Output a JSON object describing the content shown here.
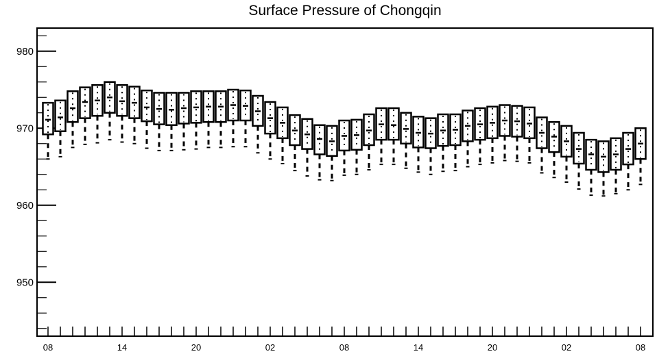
{
  "chart_data": {
    "type": "boxplot",
    "title": "Surface Pressure of Chongqin",
    "xlabel": "",
    "ylabel": "",
    "ylim": [
      943,
      983
    ],
    "y_ticks": [
      950,
      960,
      970,
      980
    ],
    "x_tick_labels": [
      "08",
      "14",
      "20",
      "02",
      "08",
      "14",
      "20",
      "02",
      "08"
    ],
    "x_tick_positions": [
      0,
      6,
      12,
      18,
      24,
      30,
      36,
      42,
      48
    ],
    "grid": false,
    "series": [
      {
        "x": [
          0,
          1,
          2,
          3,
          4,
          5,
          6,
          7,
          8,
          9,
          10,
          11,
          12,
          13,
          14,
          15,
          16,
          17,
          18,
          19,
          20,
          21,
          22,
          23,
          24,
          25,
          26,
          27,
          28,
          29,
          30,
          31,
          32,
          33,
          34,
          35,
          36,
          37,
          38,
          39,
          40,
          41,
          42,
          43,
          44,
          45,
          46,
          47,
          48
        ],
        "q1": [
          969.2,
          969.6,
          970.8,
          971.3,
          971.6,
          972.0,
          971.6,
          971.3,
          970.9,
          970.5,
          970.4,
          970.6,
          970.7,
          970.8,
          970.8,
          971.0,
          971.0,
          970.3,
          969.3,
          968.7,
          967.8,
          967.3,
          966.6,
          966.4,
          967.1,
          967.2,
          967.8,
          968.5,
          968.5,
          968.0,
          967.5,
          967.4,
          967.7,
          967.8,
          968.3,
          968.5,
          968.7,
          969.0,
          968.9,
          968.7,
          967.4,
          966.9,
          966.3,
          965.4,
          964.6,
          964.3,
          964.6,
          965.3,
          966.0
        ],
        "median": [
          971.1,
          971.4,
          972.6,
          973.4,
          973.6,
          974.0,
          973.5,
          973.3,
          972.7,
          972.5,
          972.4,
          972.6,
          972.7,
          972.8,
          972.8,
          973.0,
          972.9,
          972.2,
          971.3,
          970.7,
          969.7,
          969.2,
          968.6,
          968.3,
          969.0,
          969.1,
          969.7,
          970.5,
          970.4,
          969.9,
          969.4,
          969.3,
          969.7,
          969.8,
          970.3,
          970.5,
          970.7,
          971.0,
          970.9,
          970.6,
          969.4,
          968.9,
          968.3,
          967.3,
          966.6,
          966.3,
          966.6,
          967.3,
          968.0
        ],
        "q3": [
          973.3,
          973.6,
          974.8,
          975.3,
          975.6,
          976.0,
          975.6,
          975.4,
          974.9,
          974.6,
          974.6,
          974.6,
          974.8,
          974.8,
          974.8,
          975.0,
          974.9,
          974.2,
          973.4,
          972.7,
          971.7,
          971.2,
          970.4,
          970.3,
          971.0,
          971.1,
          971.8,
          972.6,
          972.6,
          972.0,
          971.5,
          971.3,
          971.8,
          971.8,
          972.3,
          972.6,
          972.8,
          973.0,
          972.9,
          972.7,
          971.4,
          970.8,
          970.3,
          969.4,
          968.5,
          968.3,
          968.7,
          969.4,
          970.0
        ],
        "whisker_low": [
          966.0,
          966.3,
          967.5,
          967.9,
          968.1,
          968.5,
          968.2,
          968.0,
          967.4,
          967.1,
          967.1,
          967.2,
          967.3,
          967.5,
          967.5,
          967.6,
          967.6,
          966.8,
          966.0,
          965.4,
          964.5,
          963.8,
          963.3,
          963.2,
          963.9,
          964.0,
          964.6,
          965.3,
          965.3,
          964.8,
          964.3,
          964.0,
          964.4,
          964.5,
          965.0,
          965.3,
          965.5,
          965.8,
          965.7,
          965.5,
          964.2,
          963.6,
          963.0,
          962.1,
          961.3,
          961.2,
          961.5,
          962.0,
          962.7
        ],
        "whisker_high": [
          969.2,
          969.6,
          970.8,
          971.3,
          971.6,
          972.0,
          971.6,
          971.3,
          970.9,
          970.5,
          970.4,
          970.6,
          970.7,
          970.8,
          970.8,
          971.0,
          971.0,
          970.3,
          969.3,
          968.7,
          967.8,
          967.3,
          966.6,
          966.4,
          967.1,
          967.2,
          967.8,
          968.5,
          968.5,
          968.0,
          967.5,
          967.4,
          967.7,
          967.8,
          968.3,
          968.5,
          968.7,
          969.0,
          968.9,
          968.7,
          967.4,
          966.9,
          966.3,
          965.4,
          964.6,
          964.3,
          964.6,
          965.3,
          966.0
        ]
      }
    ]
  }
}
